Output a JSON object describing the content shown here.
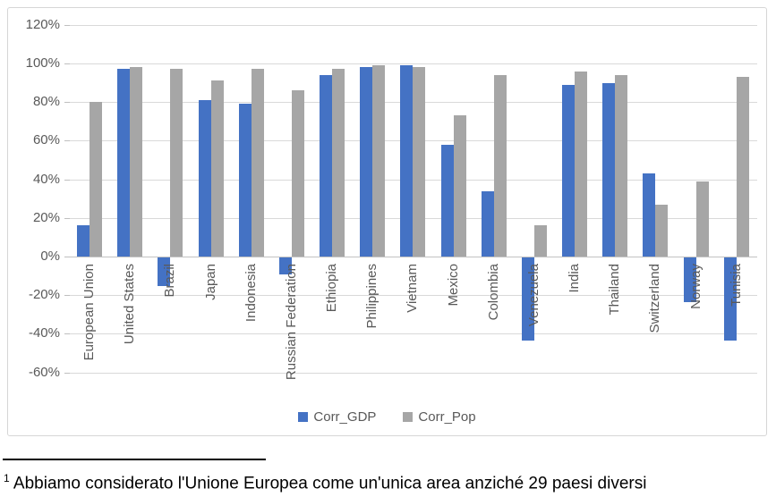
{
  "footnote": {
    "marker": "1",
    "text": "Abbiamo considerato l'Unione Europea come un'unica area anziché 29 paesi diversi"
  },
  "chart_data": {
    "type": "bar",
    "title": "",
    "categories": [
      "European Union",
      "United States",
      "Brazil",
      "Japan",
      "Indonesia",
      "Russian Federation",
      "Ethiopia",
      "Philippines",
      "Vietnam",
      "Mexico",
      "Colombia",
      "Venezuela",
      "India",
      "Thailand",
      "Switzerland",
      "Norway",
      "Tunisia"
    ],
    "series": [
      {
        "name": "Corr_GDP",
        "color": "#4472C4",
        "values": [
          16,
          97,
          -15,
          81,
          79,
          -9,
          94,
          98,
          99,
          58,
          34,
          -43,
          89,
          90,
          43,
          -23,
          -43
        ]
      },
      {
        "name": "Corr_Pop",
        "color": "#A6A6A6",
        "values": [
          80,
          98,
          97,
          91,
          97,
          86,
          97,
          99,
          98,
          73,
          94,
          16,
          96,
          94,
          27,
          39,
          93
        ]
      }
    ],
    "y_axis": {
      "unit": "percent",
      "tick_values": [
        120,
        100,
        80,
        60,
        40,
        20,
        0,
        -20,
        -40,
        -60
      ],
      "tick_labels": [
        "120%",
        "100%",
        "80%",
        "60%",
        "40%",
        "20%",
        "0%",
        "-20%",
        "-40%",
        "-60%"
      ]
    },
    "ylim": [
      -60,
      120
    ],
    "grid": true,
    "legend_position": "bottom",
    "colors": {
      "gridline": "#D9D9D9",
      "axis_text": "#595959"
    }
  }
}
